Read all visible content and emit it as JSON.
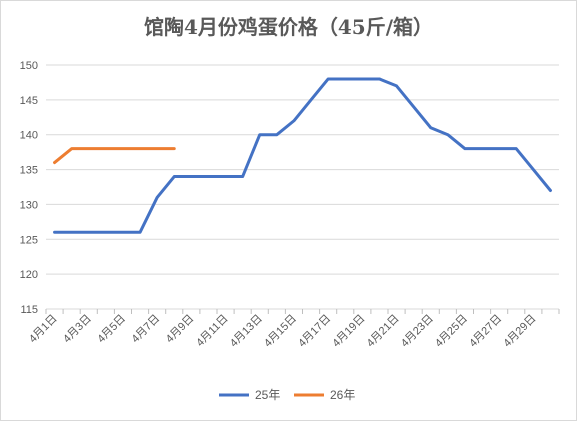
{
  "chart_data": {
    "type": "line",
    "title": "馆陶4月份鸡蛋价格（45斤/箱）",
    "xlabel": "",
    "ylabel": "",
    "ylim": [
      115,
      150
    ],
    "yticks": [
      115,
      120,
      125,
      130,
      135,
      140,
      145,
      150
    ],
    "grid": true,
    "legend": "bottom",
    "categories": [
      "4月1日",
      "4月2日",
      "4月3日",
      "4月4日",
      "4月5日",
      "4月6日",
      "4月7日",
      "4月8日",
      "4月9日",
      "4月10日",
      "4月11日",
      "4月12日",
      "4月13日",
      "4月14日",
      "4月15日",
      "4月16日",
      "4月17日",
      "4月18日",
      "4月19日",
      "4月20日",
      "4月21日",
      "4月22日",
      "4月23日",
      "4月24日",
      "4月25日",
      "4月26日",
      "4月27日",
      "4月28日",
      "4月29日",
      "4月30日"
    ],
    "tick_labels": [
      "4月1日",
      "4月3日",
      "4月5日",
      "4月7日",
      "4月9日",
      "4月11日",
      "4月13日",
      "4月15日",
      "4月17日",
      "4月19日",
      "4月21日",
      "4月23日",
      "4月25日",
      "4月27日",
      "4月29日"
    ],
    "series": [
      {
        "name": "25年",
        "color": "#4472C4",
        "values": [
          126,
          126,
          126,
          126,
          126,
          126,
          131,
          134,
          134,
          134,
          134,
          134,
          140,
          140,
          142,
          145,
          148,
          148,
          148,
          148,
          147,
          144,
          141,
          140,
          138,
          138,
          138,
          138,
          135,
          132
        ]
      },
      {
        "name": "26年",
        "color": "#ED7D31",
        "values": [
          136,
          138,
          138,
          138,
          138,
          138,
          138,
          138,
          null,
          null,
          null,
          null,
          null,
          null,
          null,
          null,
          null,
          null,
          null,
          null,
          null,
          null,
          null,
          null,
          null,
          null,
          null,
          null,
          null,
          null
        ]
      }
    ]
  }
}
